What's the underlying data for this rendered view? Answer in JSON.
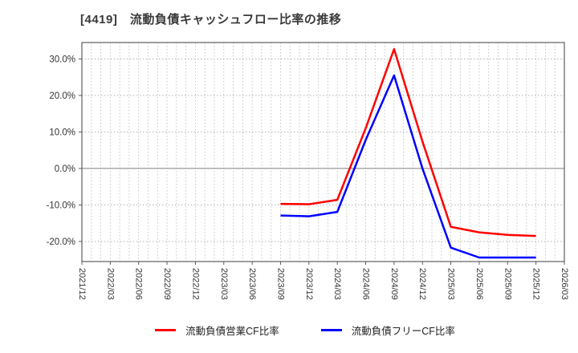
{
  "title": "[4419]　流動負債キャッシュフロー比率の推移",
  "chart_data": {
    "type": "line",
    "title": "[4419]　流動負債キャッシュフロー比率の推移",
    "x_tick_labels": [
      "2021/12",
      "2022/03",
      "2022/06",
      "2022/09",
      "2022/12",
      "2023/03",
      "2023/06",
      "2023/09",
      "2023/12",
      "2024/03",
      "2024/06",
      "2024/09",
      "2024/12",
      "2025/03",
      "2025/06",
      "2025/09",
      "2025/12",
      "2026/03"
    ],
    "y_tick_labels": [
      "30.0%",
      "20.0%",
      "10.0%",
      "0.0%",
      "-10.0%",
      "-20.0%"
    ],
    "y_tick_values": [
      30,
      20,
      10,
      0,
      -10,
      -20
    ],
    "ylim": [
      -25.5,
      34.5
    ],
    "grid": true,
    "legend_position": "bottom",
    "categories": [
      "2023/09",
      "2023/12",
      "2024/03",
      "2024/06",
      "2024/09",
      "2024/12",
      "2025/03",
      "2025/06",
      "2025/09",
      "2025/12"
    ],
    "series": [
      {
        "name": "流動負債営業CF比率",
        "color": "#ff0000",
        "values": [
          -9.7,
          -9.8,
          -8.6,
          11.0,
          32.7,
          7.4,
          -16.0,
          -17.5,
          -18.2,
          -18.5
        ]
      },
      {
        "name": "流動負債フリーCF比率",
        "color": "#0000ff",
        "values": [
          -12.9,
          -13.1,
          -11.9,
          7.8,
          25.5,
          0.0,
          -21.7,
          -24.4,
          -24.4,
          -24.4
        ]
      }
    ]
  },
  "styles": {
    "axis_color": "#5f5f5f",
    "grid_color_h": "#999999",
    "grid_color_v": "#b8b8b8",
    "zero_line_color": "#8c8c8c",
    "tick_text_color": "#333333"
  }
}
